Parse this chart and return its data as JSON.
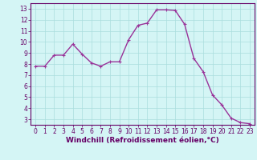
{
  "x": [
    0,
    1,
    2,
    3,
    4,
    5,
    6,
    7,
    8,
    9,
    10,
    11,
    12,
    13,
    14,
    15,
    16,
    17,
    18,
    19,
    20,
    21,
    22,
    23
  ],
  "y": [
    7.8,
    7.8,
    8.8,
    8.8,
    9.8,
    8.9,
    8.1,
    7.8,
    8.2,
    8.2,
    10.2,
    11.5,
    11.7,
    12.9,
    12.9,
    12.85,
    11.6,
    8.5,
    7.3,
    5.2,
    4.3,
    3.1,
    2.7,
    2.6
  ],
  "line_color": "#993399",
  "marker": "+",
  "marker_size": 3,
  "bg_color": "#d4f5f5",
  "grid_color": "#aadddd",
  "xlabel": "Windchill (Refroidissement éolien,°C)",
  "ylim": [
    2.5,
    13.5
  ],
  "xlim": [
    -0.5,
    23.5
  ],
  "yticks": [
    3,
    4,
    5,
    6,
    7,
    8,
    9,
    10,
    11,
    12,
    13
  ],
  "xticks": [
    0,
    1,
    2,
    3,
    4,
    5,
    6,
    7,
    8,
    9,
    10,
    11,
    12,
    13,
    14,
    15,
    16,
    17,
    18,
    19,
    20,
    21,
    22,
    23
  ],
  "tick_fontsize": 5.5,
  "xlabel_fontsize": 6.5,
  "axis_color": "#660066",
  "spine_color": "#660066",
  "linewidth": 1.0,
  "markeredgewidth": 0.8
}
